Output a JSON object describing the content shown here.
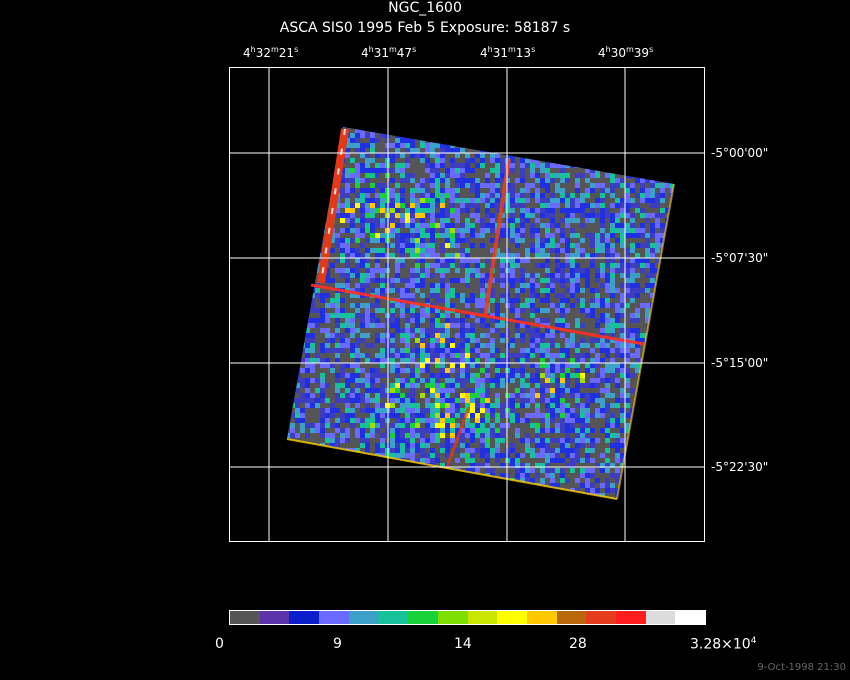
{
  "title": "NGC_1600",
  "subtitle": "ASCA SIS0    1995 Feb  5    Exposure: 58187 s",
  "ra_ticks": [
    {
      "h": "4",
      "m": "32",
      "s": "21"
    },
    {
      "h": "4",
      "m": "31",
      "s": "47"
    },
    {
      "h": "4",
      "m": "31",
      "s": "13"
    },
    {
      "h": "4",
      "m": "30",
      "s": "39"
    }
  ],
  "dec_ticks": [
    "-5°00'00\"",
    "-5°07'30\"",
    "-5°15'00\"",
    "-5°22'30\""
  ],
  "colorbar": {
    "colors": [
      "#555555",
      "#5a34a8",
      "#0a1ecc",
      "#6a6aff",
      "#3da0c8",
      "#17c29a",
      "#19d23a",
      "#7ee000",
      "#c8e600",
      "#ffff00",
      "#ffc800",
      "#b8680a",
      "#e63c1e",
      "#ff1e1e",
      "#dcdcdc",
      "#ffffff"
    ],
    "labels": [
      "0",
      "9",
      "14",
      "28",
      "3.28×10"
    ],
    "label_exponent": "4"
  },
  "timestamp": "9-Oct-1998 21:30"
}
